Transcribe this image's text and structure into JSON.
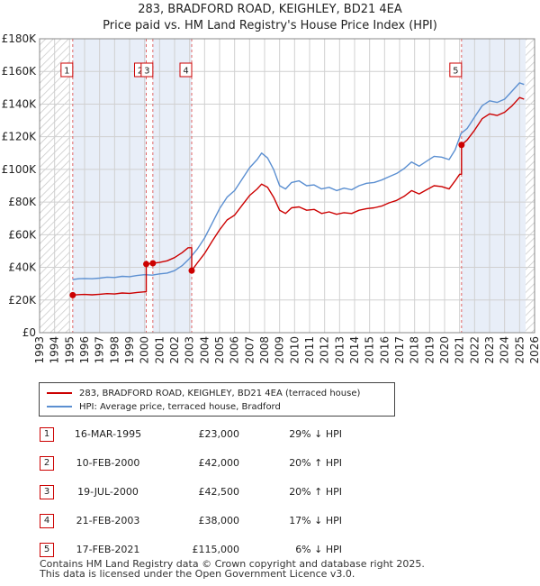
{
  "title": "283, BRADFORD ROAD, KEIGHLEY, BD21 4EA",
  "subtitle": "Price paid vs. HM Land Registry's House Price Index (HPI)",
  "legend": {
    "property_label": "283, BRADFORD ROAD, KEIGHLEY, BD21 4EA (terraced house)",
    "hpi_label": "HPI: Average price, terraced house, Bradford"
  },
  "colors": {
    "property": "#cc0000",
    "hpi": "#5b8fd1",
    "shade": "#e8eef8",
    "marker_line": "#e06666",
    "grid": "#d0d0d0"
  },
  "transactions": [
    {
      "num": "1",
      "date": "16-MAR-1995",
      "price": "£23,000",
      "hpi_rel": "29% ↓ HPI"
    },
    {
      "num": "2",
      "date": "10-FEB-2000",
      "price": "£42,000",
      "hpi_rel": "20% ↑ HPI"
    },
    {
      "num": "3",
      "date": "19-JUL-2000",
      "price": "£42,500",
      "hpi_rel": "20% ↑ HPI"
    },
    {
      "num": "4",
      "date": "21-FEB-2003",
      "price": "£38,000",
      "hpi_rel": "17% ↓ HPI"
    },
    {
      "num": "5",
      "date": "17-FEB-2021",
      "price": "£115,000",
      "hpi_rel": "6% ↓ HPI"
    }
  ],
  "footer": {
    "line1": "Contains HM Land Registry data © Crown copyright and database right 2025.",
    "line2": "This data is licensed under the Open Government Licence v3.0."
  },
  "chart_data": {
    "type": "line",
    "title": "283, BRADFORD ROAD, KEIGHLEY, BD21 4EA",
    "subtitle": "Price paid vs. HM Land Registry's House Price Index (HPI)",
    "xlabel": "",
    "ylabel": "",
    "xlim": [
      1993,
      2026
    ],
    "ylim": [
      0,
      180000
    ],
    "x_ticks": [
      1993,
      1994,
      1995,
      1996,
      1997,
      1998,
      1999,
      2000,
      2001,
      2002,
      2003,
      2004,
      2005,
      2006,
      2007,
      2008,
      2009,
      2010,
      2011,
      2012,
      2013,
      2014,
      2015,
      2016,
      2017,
      2018,
      2019,
      2020,
      2021,
      2022,
      2023,
      2024,
      2025,
      2026
    ],
    "y_ticks": [
      0,
      20000,
      40000,
      60000,
      80000,
      100000,
      120000,
      140000,
      160000,
      180000
    ],
    "y_tick_labels": [
      "£0",
      "£20K",
      "£40K",
      "£60K",
      "£80K",
      "£100K",
      "£120K",
      "£140K",
      "£160K",
      "£180K"
    ],
    "hatched_ranges": [
      [
        1993,
        1995.0
      ],
      [
        2025.4,
        2026
      ]
    ],
    "sales": [
      {
        "label": "1",
        "x": 1995.21,
        "y": 23000
      },
      {
        "label": "2",
        "x": 2000.11,
        "y": 42000
      },
      {
        "label": "3",
        "x": 2000.55,
        "y": 42500
      },
      {
        "label": "4",
        "x": 2003.14,
        "y": 38000
      },
      {
        "label": "5",
        "x": 2021.13,
        "y": 115000
      }
    ],
    "shaded_ranges": [
      [
        1995.21,
        2000.11
      ],
      [
        2000.55,
        2003.14
      ],
      [
        2021.13,
        2025.4
      ]
    ],
    "series": [
      {
        "name": "HPI: Average price, terraced house, Bradford",
        "points": [
          [
            1995.2,
            32500
          ],
          [
            1995.6,
            33000
          ],
          [
            1996.0,
            33200
          ],
          [
            1996.5,
            33000
          ],
          [
            1997.0,
            33400
          ],
          [
            1997.5,
            34000
          ],
          [
            1998.0,
            33800
          ],
          [
            1998.5,
            34500
          ],
          [
            1999.0,
            34300
          ],
          [
            1999.5,
            35000
          ],
          [
            2000.0,
            35500
          ],
          [
            2000.5,
            35200
          ],
          [
            2001.0,
            36000
          ],
          [
            2001.5,
            36500
          ],
          [
            2002.0,
            38000
          ],
          [
            2002.5,
            41000
          ],
          [
            2003.0,
            45500
          ],
          [
            2003.5,
            51000
          ],
          [
            2004.0,
            58000
          ],
          [
            2004.5,
            67000
          ],
          [
            2005.0,
            76000
          ],
          [
            2005.5,
            83000
          ],
          [
            2006.0,
            87000
          ],
          [
            2006.5,
            94000
          ],
          [
            2007.0,
            101000
          ],
          [
            2007.5,
            106000
          ],
          [
            2007.8,
            110000
          ],
          [
            2008.2,
            107000
          ],
          [
            2008.6,
            100000
          ],
          [
            2009.0,
            90000
          ],
          [
            2009.4,
            88000
          ],
          [
            2009.8,
            92000
          ],
          [
            2010.3,
            93000
          ],
          [
            2010.8,
            90000
          ],
          [
            2011.3,
            90500
          ],
          [
            2011.8,
            88000
          ],
          [
            2012.3,
            89000
          ],
          [
            2012.8,
            87000
          ],
          [
            2013.3,
            88500
          ],
          [
            2013.8,
            87500
          ],
          [
            2014.3,
            90000
          ],
          [
            2014.8,
            91500
          ],
          [
            2015.3,
            92000
          ],
          [
            2015.8,
            93500
          ],
          [
            2016.3,
            95500
          ],
          [
            2016.8,
            97500
          ],
          [
            2017.3,
            100500
          ],
          [
            2017.8,
            104500
          ],
          [
            2018.3,
            102000
          ],
          [
            2018.8,
            105000
          ],
          [
            2019.3,
            108000
          ],
          [
            2019.8,
            107500
          ],
          [
            2020.3,
            106000
          ],
          [
            2020.7,
            112000
          ],
          [
            2021.1,
            122000
          ],
          [
            2021.5,
            125000
          ],
          [
            2022.0,
            132000
          ],
          [
            2022.5,
            139000
          ],
          [
            2023.0,
            142000
          ],
          [
            2023.5,
            141000
          ],
          [
            2024.0,
            143000
          ],
          [
            2024.5,
            148000
          ],
          [
            2025.0,
            153000
          ],
          [
            2025.3,
            152000
          ]
        ]
      },
      {
        "name": "283, BRADFORD ROAD, KEIGHLEY, BD21 4EA (terraced house)",
        "points": [
          [
            1995.21,
            23000
          ],
          [
            1995.6,
            23300
          ],
          [
            1996.0,
            23400
          ],
          [
            1996.5,
            23200
          ],
          [
            1997.0,
            23500
          ],
          [
            1997.5,
            23900
          ],
          [
            1998.0,
            23700
          ],
          [
            1998.5,
            24300
          ],
          [
            1999.0,
            24100
          ],
          [
            1999.5,
            24600
          ],
          [
            2000.0,
            25000
          ],
          [
            2000.11,
            25000
          ],
          [
            2000.11,
            42000
          ],
          [
            2000.55,
            42500
          ],
          [
            2001.0,
            43000
          ],
          [
            2001.5,
            44000
          ],
          [
            2002.0,
            46000
          ],
          [
            2002.5,
            49000
          ],
          [
            2002.9,
            52000
          ],
          [
            2003.14,
            52000
          ],
          [
            2003.14,
            38000
          ],
          [
            2003.5,
            42500
          ],
          [
            2004.0,
            48500
          ],
          [
            2004.5,
            56000
          ],
          [
            2005.0,
            63000
          ],
          [
            2005.5,
            69000
          ],
          [
            2006.0,
            72000
          ],
          [
            2006.5,
            78000
          ],
          [
            2007.0,
            84000
          ],
          [
            2007.5,
            88000
          ],
          [
            2007.8,
            91000
          ],
          [
            2008.2,
            89000
          ],
          [
            2008.6,
            83000
          ],
          [
            2009.0,
            75000
          ],
          [
            2009.4,
            73000
          ],
          [
            2009.8,
            76500
          ],
          [
            2010.3,
            77000
          ],
          [
            2010.8,
            75000
          ],
          [
            2011.3,
            75500
          ],
          [
            2011.8,
            73000
          ],
          [
            2012.3,
            74000
          ],
          [
            2012.8,
            72500
          ],
          [
            2013.3,
            73500
          ],
          [
            2013.8,
            73000
          ],
          [
            2014.3,
            75000
          ],
          [
            2014.8,
            76000
          ],
          [
            2015.3,
            76500
          ],
          [
            2015.8,
            77500
          ],
          [
            2016.3,
            79500
          ],
          [
            2016.8,
            81000
          ],
          [
            2017.3,
            83500
          ],
          [
            2017.8,
            87000
          ],
          [
            2018.3,
            85000
          ],
          [
            2018.8,
            87500
          ],
          [
            2019.3,
            90000
          ],
          [
            2019.8,
            89500
          ],
          [
            2020.3,
            88000
          ],
          [
            2020.7,
            93000
          ],
          [
            2021.0,
            97000
          ],
          [
            2021.13,
            97000
          ],
          [
            2021.13,
            115000
          ],
          [
            2021.5,
            118000
          ],
          [
            2022.0,
            124000
          ],
          [
            2022.5,
            131000
          ],
          [
            2023.0,
            134000
          ],
          [
            2023.5,
            133000
          ],
          [
            2024.0,
            135000
          ],
          [
            2024.5,
            139000
          ],
          [
            2025.0,
            144000
          ],
          [
            2025.3,
            143000
          ]
        ]
      }
    ]
  }
}
